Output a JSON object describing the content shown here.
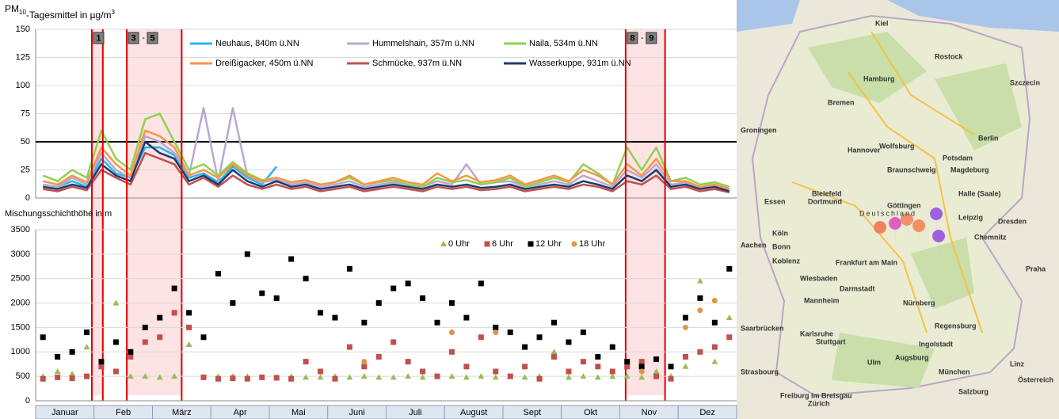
{
  "chart_data": [
    {
      "type": "line",
      "title": {
        "main": "PM",
        "sub": "10",
        "rest": "-Tagesmittel in µg/m",
        "sup": "3"
      },
      "categories": [
        "Januar",
        null,
        null,
        null,
        "Feb",
        null,
        null,
        null,
        "März",
        null,
        null,
        null,
        "Apr",
        null,
        null,
        null,
        "Mai",
        null,
        null,
        null,
        "Juni",
        null,
        null,
        null,
        "Juli",
        null,
        null,
        null,
        "August",
        null,
        null,
        null,
        "Sept",
        null,
        null,
        null,
        "Okt",
        null,
        null,
        null,
        "Nov",
        null,
        null,
        null,
        "Dez",
        null,
        null,
        null
      ],
      "ylim": [
        0,
        150
      ],
      "yticks": [
        0,
        25,
        50,
        75,
        100,
        125,
        150
      ],
      "grid": true,
      "threshold": 50,
      "events": [
        {
          "labels": [
            "1"
          ],
          "range": [
            3.85,
            4.6
          ]
        },
        {
          "labels": [
            "3",
            "-",
            "5"
          ],
          "range": [
            6.24,
            10.0
          ]
        },
        {
          "labels": [
            "8",
            "-",
            "9"
          ],
          "range": [
            40.4,
            43.1
          ]
        }
      ],
      "series": [
        {
          "name": "Neuhaus, 840m ü.NN",
          "color": "#29b6e8",
          "values": [
            12,
            10,
            15,
            10,
            35,
            22,
            18,
            45,
            45,
            38,
            18,
            22,
            14,
            28,
            18,
            12,
            28,
            null,
            null,
            null,
            null,
            null,
            null,
            null,
            null,
            null,
            null,
            null,
            null,
            null,
            null,
            null,
            null,
            null,
            null,
            null,
            null,
            null,
            null,
            null,
            null,
            null,
            null,
            null,
            null,
            null,
            null,
            null
          ]
        },
        {
          "name": "Hummelshain, 357m ü.NN",
          "color": "#b9a8d1",
          "values": [
            12,
            10,
            18,
            12,
            40,
            25,
            18,
            55,
            50,
            40,
            20,
            80,
            15,
            80,
            20,
            14,
            16,
            12,
            14,
            10,
            12,
            15,
            10,
            12,
            14,
            12,
            10,
            15,
            12,
            30,
            12,
            14,
            15,
            10,
            12,
            15,
            12,
            20,
            15,
            10,
            25,
            18,
            30,
            12,
            14,
            10,
            12,
            8
          ]
        },
        {
          "name": "Naila, 534m ü.NN",
          "color": "#8fd14f",
          "values": [
            20,
            15,
            25,
            18,
            60,
            35,
            25,
            70,
            75,
            50,
            25,
            30,
            20,
            32,
            22,
            16,
            18,
            14,
            16,
            12,
            14,
            18,
            12,
            14,
            16,
            12,
            10,
            18,
            14,
            16,
            12,
            14,
            18,
            10,
            14,
            18,
            14,
            30,
            22,
            12,
            45,
            25,
            45,
            15,
            18,
            12,
            14,
            10
          ]
        },
        {
          "name": "Dreißigacker, 450m ü.NN",
          "color": "#f79646",
          "values": [
            15,
            12,
            20,
            14,
            45,
            30,
            20,
            60,
            55,
            45,
            20,
            25,
            18,
            30,
            20,
            15,
            18,
            14,
            16,
            12,
            14,
            20,
            12,
            15,
            18,
            14,
            12,
            22,
            15,
            20,
            14,
            16,
            20,
            12,
            16,
            20,
            15,
            25,
            20,
            12,
            30,
            20,
            35,
            15,
            15,
            10,
            12,
            8
          ]
        },
        {
          "name": "Schmücke, 937m ü.NN",
          "color": "#c0504d",
          "values": [
            8,
            6,
            10,
            7,
            25,
            18,
            12,
            40,
            35,
            30,
            12,
            18,
            10,
            20,
            12,
            8,
            12,
            8,
            10,
            6,
            8,
            10,
            6,
            8,
            10,
            8,
            6,
            10,
            8,
            10,
            7,
            8,
            10,
            6,
            8,
            10,
            8,
            12,
            10,
            6,
            15,
            12,
            20,
            8,
            10,
            6,
            8,
            5
          ]
        },
        {
          "name": "Wasserkuppe, 931m ü.NN",
          "color": "#1f3a6e",
          "values": [
            10,
            8,
            12,
            9,
            30,
            20,
            15,
            50,
            40,
            35,
            15,
            20,
            12,
            25,
            15,
            10,
            15,
            10,
            12,
            8,
            10,
            12,
            8,
            10,
            12,
            10,
            8,
            12,
            10,
            12,
            9,
            10,
            12,
            8,
            10,
            12,
            10,
            15,
            12,
            8,
            20,
            15,
            25,
            10,
            12,
            8,
            10,
            6
          ]
        }
      ]
    },
    {
      "type": "scatter",
      "title": "Mischungsschichthöhe in m",
      "ylim": [
        0,
        3500
      ],
      "yticks": [
        0,
        500,
        1000,
        1500,
        2000,
        2500,
        3000,
        3500
      ],
      "grid": true,
      "series": [
        {
          "name": "0 Uhr",
          "color": "#9bbb59",
          "marker": "triangle",
          "values": [
            500,
            600,
            550,
            1100,
            700,
            2000,
            500,
            500,
            480,
            500,
            1150,
            480,
            500,
            500,
            500,
            480,
            480,
            500,
            480,
            480,
            500,
            480,
            500,
            480,
            480,
            500,
            480,
            500,
            500,
            480,
            500,
            480,
            500,
            480,
            500,
            1000,
            480,
            500,
            480,
            500,
            500,
            480,
            600,
            500,
            700,
            2450,
            800,
            1700
          ]
        },
        {
          "name": "6 Uhr",
          "color": "#c0504d",
          "marker": "square",
          "values": [
            450,
            480,
            460,
            500,
            700,
            600,
            900,
            1200,
            1300,
            1800,
            1500,
            480,
            450,
            460,
            450,
            480,
            470,
            450,
            800,
            600,
            450,
            1100,
            700,
            900,
            1200,
            800,
            600,
            500,
            1000,
            700,
            1300,
            600,
            500,
            700,
            450,
            900,
            600,
            800,
            700,
            600,
            700,
            800,
            500,
            450,
            900,
            1000,
            1100,
            1300
          ]
        },
        {
          "name": "12 Uhr",
          "color": "#000000",
          "marker": "square",
          "values": [
            1300,
            900,
            1000,
            1400,
            800,
            1200,
            1000,
            1500,
            1700,
            2300,
            1800,
            1300,
            2600,
            2000,
            3000,
            2200,
            2100,
            2900,
            2500,
            1800,
            1700,
            2700,
            1600,
            2000,
            2300,
            2400,
            2100,
            1600,
            2000,
            1700,
            2400,
            1500,
            1400,
            1100,
            1300,
            1600,
            1200,
            1400,
            900,
            1100,
            800,
            700,
            850,
            700,
            1700,
            2100,
            1600,
            2700
          ]
        },
        {
          "name": "18 Uhr",
          "color": "#e0954a",
          "marker": "circle",
          "values": [
            null,
            null,
            null,
            null,
            null,
            null,
            null,
            null,
            null,
            null,
            null,
            null,
            null,
            null,
            null,
            null,
            null,
            null,
            null,
            null,
            null,
            null,
            800,
            null,
            null,
            null,
            null,
            null,
            1400,
            null,
            null,
            1400,
            null,
            null,
            null,
            null,
            null,
            null,
            null,
            null,
            null,
            600,
            null,
            null,
            1500,
            1850,
            2050,
            null
          ]
        }
      ]
    }
  ],
  "map": {
    "country": "Deutschland",
    "cities": [
      "Kiel",
      "Rostock",
      "Hamburg",
      "Bremen",
      "Szczecin",
      "Groningen",
      "Hannover",
      "Berlin",
      "Potsdam",
      "Wolfsburg",
      "Braunschweig",
      "Magdeburg",
      "Bielefeld",
      "Dortmund",
      "Essen",
      "Göttingen",
      "Halle (Saale)",
      "Leipzig",
      "Dresden",
      "Köln",
      "Bonn",
      "Aachen",
      "Chemnitz",
      "Koblenz",
      "Frankfurt am Main",
      "Wiesbaden",
      "Darmstadt",
      "Praha",
      "Mannheim",
      "Nürnberg",
      "Saarbrücken",
      "Karlsruhe",
      "Stuttgart",
      "Regensburg",
      "Ingolstadt",
      "Strasbourg",
      "Ulm",
      "Augsburg",
      "München",
      "Freiburg im Breisgau",
      "Salzburg",
      "Linz",
      "Österreich",
      "Zürich"
    ]
  }
}
